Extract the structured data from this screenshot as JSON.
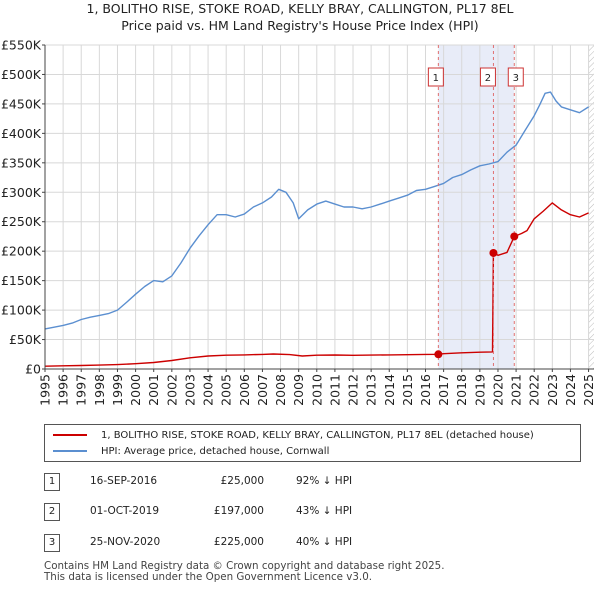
{
  "chart_data": {
    "type": "line",
    "title": "1, BOLITHO RISE, STOKE ROAD, KELLY BRAY, CALLINGTON, PL17 8EL",
    "subtitle": "Price paid vs. HM Land Registry's House Price Index (HPI)",
    "xlim": [
      1995,
      2025.3
    ],
    "ylim": [
      0,
      550000
    ],
    "x_ticks": [
      "1995",
      "1996",
      "1997",
      "1998",
      "1999",
      "2000",
      "2001",
      "2002",
      "2003",
      "2004",
      "2005",
      "2006",
      "2007",
      "2008",
      "2009",
      "2010",
      "2011",
      "2012",
      "2013",
      "2014",
      "2015",
      "2016",
      "2017",
      "2018",
      "2019",
      "2020",
      "2021",
      "2022",
      "2023",
      "2024",
      "2025"
    ],
    "y_ticks": [
      {
        "value": 0,
        "label": "£0"
      },
      {
        "value": 50000,
        "label": "£50K"
      },
      {
        "value": 100000,
        "label": "£100K"
      },
      {
        "value": 150000,
        "label": "£150K"
      },
      {
        "value": 200000,
        "label": "£200K"
      },
      {
        "value": 250000,
        "label": "£250K"
      },
      {
        "value": 300000,
        "label": "£300K"
      },
      {
        "value": 350000,
        "label": "£350K"
      },
      {
        "value": 400000,
        "label": "£400K"
      },
      {
        "value": 450000,
        "label": "£450K"
      },
      {
        "value": 500000,
        "label": "£500K"
      },
      {
        "value": 550000,
        "label": "£550K"
      }
    ],
    "grid": true,
    "shaded_region": {
      "x_start": 2016.71,
      "x_end": 2020.9,
      "color": "#e8ecf8"
    },
    "hatch_after": 2025.0,
    "series": [
      {
        "name": "1, BOLITHO RISE, STOKE ROAD, KELLY BRAY, CALLINGTON, PL17 8EL (detached house)",
        "color": "#cc0000",
        "x": [
          1995,
          1996,
          1997,
          1998,
          1999,
          2000,
          2001,
          2002,
          2003,
          2004,
          2005,
          2006,
          2007,
          2007.6,
          2008.5,
          2009.2,
          2010,
          2011,
          2012,
          2013,
          2014,
          2015,
          2016,
          2016.71,
          2017,
          2018,
          2019,
          2019.7,
          2019.75,
          2020,
          2020.5,
          2020.9,
          2021.3,
          2021.6,
          2022,
          2022.5,
          2023,
          2023.5,
          2024,
          2024.5,
          2025
        ],
        "values": [
          4800,
          5400,
          5900,
          6600,
          7400,
          9000,
          11000,
          14500,
          19000,
          22000,
          23500,
          24000,
          24800,
          25500,
          24500,
          22000,
          23500,
          23800,
          23200,
          23600,
          24000,
          24300,
          24700,
          25000,
          26000,
          27500,
          28500,
          29000,
          197000,
          193000,
          198000,
          225000,
          230000,
          235000,
          255000,
          268000,
          282000,
          270000,
          262000,
          258000,
          265000
        ]
      },
      {
        "name": "HPI: Average price, detached house, Cornwall",
        "color": "#5b8fd0",
        "x": [
          1995,
          1995.5,
          1996,
          1996.5,
          1997,
          1997.5,
          1998,
          1998.5,
          1999,
          1999.5,
          2000,
          2000.5,
          2001,
          2001.5,
          2002,
          2002.5,
          2003,
          2003.5,
          2004,
          2004.5,
          2005,
          2005.5,
          2006,
          2006.5,
          2007,
          2007.5,
          2007.9,
          2008.3,
          2008.7,
          2009,
          2009.5,
          2010,
          2010.5,
          2011,
          2011.5,
          2012,
          2012.5,
          2013,
          2013.5,
          2014,
          2014.5,
          2015,
          2015.5,
          2016,
          2016.5,
          2017,
          2017.5,
          2018,
          2018.5,
          2019,
          2019.5,
          2020,
          2020.5,
          2021,
          2021.5,
          2022,
          2022.3,
          2022.6,
          2022.9,
          2023.2,
          2023.5,
          2024,
          2024.5,
          2025
        ],
        "values": [
          68000,
          71000,
          74000,
          78000,
          84000,
          88000,
          91000,
          94000,
          100000,
          113000,
          127000,
          140000,
          150000,
          148000,
          158000,
          180000,
          205000,
          226000,
          245000,
          262000,
          262000,
          258000,
          263000,
          275000,
          282000,
          292000,
          305000,
          300000,
          282000,
          255000,
          270000,
          280000,
          285000,
          280000,
          275000,
          275000,
          272000,
          275000,
          280000,
          285000,
          290000,
          295000,
          303000,
          305000,
          310000,
          315000,
          325000,
          330000,
          338000,
          345000,
          348000,
          352000,
          368000,
          380000,
          405000,
          430000,
          448000,
          468000,
          470000,
          455000,
          445000,
          440000,
          435000,
          445000
        ]
      }
    ],
    "markers": [
      {
        "label": "1",
        "x": 2016.71,
        "y": 25000
      },
      {
        "label": "2",
        "x": 2019.75,
        "y": 197000
      },
      {
        "label": "3",
        "x": 2020.9,
        "y": 225000
      }
    ]
  },
  "legend": {
    "property_label": "1, BOLITHO RISE, STOKE ROAD, KELLY BRAY, CALLINGTON, PL17 8EL (detached house)",
    "hpi_label": "HPI: Average price, detached house, Cornwall"
  },
  "sales": [
    {
      "num": "1",
      "date": "16-SEP-2016",
      "price": "£25,000",
      "pct": "92% ↓ HPI"
    },
    {
      "num": "2",
      "date": "01-OCT-2019",
      "price": "£197,000",
      "pct": "43% ↓ HPI"
    },
    {
      "num": "3",
      "date": "25-NOV-2020",
      "price": "£225,000",
      "pct": "40% ↓ HPI"
    }
  ],
  "footer": {
    "line1": "Contains HM Land Registry data © Crown copyright and database right 2025.",
    "line2": "This data is licensed under the Open Government Licence v3.0."
  }
}
